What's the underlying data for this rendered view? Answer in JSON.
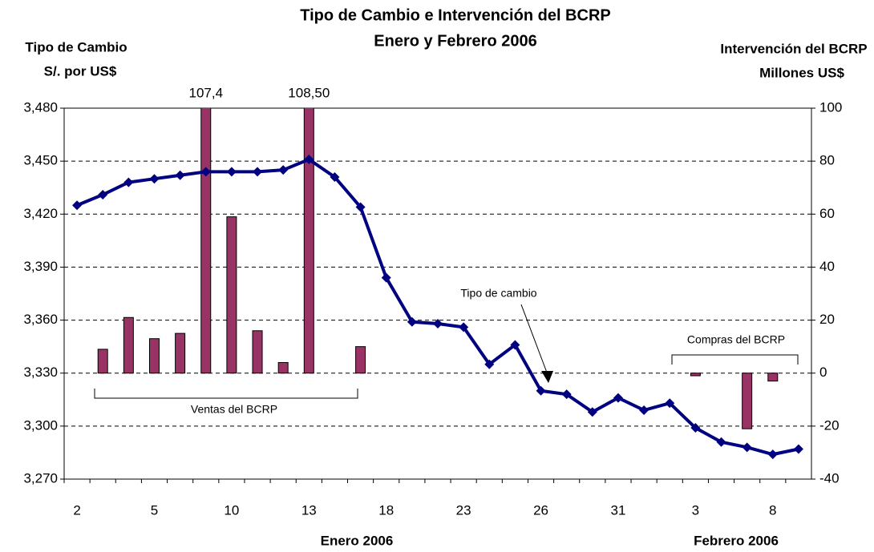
{
  "chart_data": {
    "type": "bar-line",
    "title": "Tipo de Cambio e Intervención del BCRP",
    "subtitle": "Enero y Febrero 2006",
    "y_label": [
      "Tipo de Cambio",
      "S/. por US$"
    ],
    "y2_label": [
      "Intervención del BCRP",
      "Millones US$"
    ],
    "x_group_labels": [
      "Enero 2006",
      "Febrero 2006"
    ],
    "categories": [
      "2",
      null,
      null,
      "5",
      null,
      null,
      "10",
      null,
      null,
      "13",
      null,
      null,
      "18",
      null,
      null,
      "23",
      null,
      null,
      "26",
      null,
      null,
      "31",
      null,
      null,
      "3",
      null,
      null,
      "8",
      null
    ],
    "series": [
      {
        "kind": "line",
        "color": "#000080",
        "values": [
          3425,
          3431,
          3438,
          3440,
          3442,
          3444,
          3444,
          3444,
          3445,
          3451,
          3441,
          3424,
          3384,
          3359,
          3358,
          3356,
          3335,
          3346,
          3320,
          3318,
          3308,
          3316,
          3309,
          3313,
          3299,
          3291,
          3288,
          3284,
          3287
        ]
      },
      {
        "kind": "bar",
        "axis": "y2",
        "color": "#993366",
        "values": [
          null,
          9,
          21,
          13,
          15,
          107.4,
          59,
          16,
          4,
          108.5,
          null,
          10,
          null,
          null,
          null,
          null,
          null,
          null,
          null,
          null,
          null,
          null,
          null,
          null,
          -1,
          null,
          -21,
          -3,
          null
        ],
        "value_labels": [
          null,
          null,
          null,
          null,
          null,
          "107,4",
          null,
          null,
          null,
          "108,50",
          null,
          null,
          null,
          null,
          null,
          null,
          null,
          null,
          null,
          null,
          null,
          null,
          null,
          null,
          null,
          null,
          null,
          null,
          null
        ]
      }
    ],
    "annotations": [
      "Ventas del BCRP",
      "Compras del BCRP",
      "Tipo de cambio"
    ],
    "ylim": [
      3270,
      3480
    ],
    "yticks": [
      {
        "value": 3270,
        "label": "3,270"
      },
      {
        "value": 3300,
        "label": "3,300"
      },
      {
        "value": 3330,
        "label": "3,330"
      },
      {
        "value": 3360,
        "label": "3,360"
      },
      {
        "value": 3390,
        "label": "3,390"
      },
      {
        "value": 3420,
        "label": "3,420"
      },
      {
        "value": 3450,
        "label": "3,450"
      },
      {
        "value": 3480,
        "label": "3,480"
      }
    ],
    "y2lim": [
      -40,
      100
    ],
    "y2ticks": [
      -40,
      -20,
      0,
      20,
      40,
      60,
      80,
      100
    ],
    "grid": true
  }
}
